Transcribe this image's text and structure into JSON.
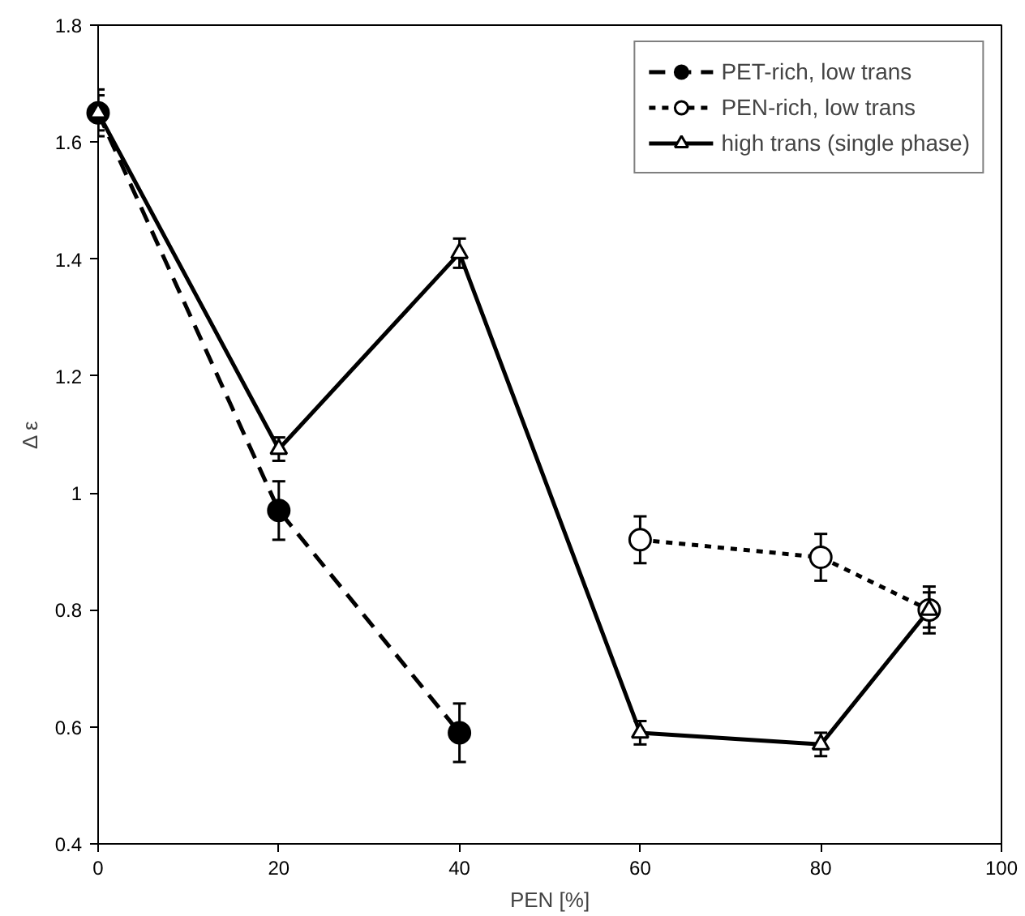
{
  "chart_data": {
    "type": "line",
    "xlabel": "PEN [%]",
    "ylabel": "Δ ε",
    "xlim": [
      0,
      100
    ],
    "ylim": [
      0.4,
      1.8
    ],
    "xticks": [
      0,
      20,
      40,
      60,
      80,
      100
    ],
    "yticks": [
      0.4,
      0.6,
      0.8,
      1,
      1.2,
      1.4,
      1.6,
      1.8
    ],
    "grid": false,
    "legend": "top right",
    "series": [
      {
        "name": "PET-rich, low trans",
        "color": "#000000",
        "x": [
          0,
          20,
          40
        ],
        "values": [
          1.65,
          0.97,
          0.59
        ],
        "errors": [
          0.03,
          0.05,
          0.05
        ],
        "marker": "circle",
        "line_style": "dashed"
      },
      {
        "name": "PEN-rich, low trans",
        "color": "#000000",
        "x": [
          60,
          80,
          92
        ],
        "values": [
          0.92,
          0.89,
          0.8
        ],
        "errors": [
          0.04,
          0.04,
          0.04
        ],
        "marker": "circle",
        "line_style": "dotted"
      },
      {
        "name": "high trans (single phase)",
        "color": "#000000",
        "x": [
          0,
          20,
          40,
          60,
          80,
          92
        ],
        "values": [
          1.65,
          1.075,
          1.41,
          0.59,
          0.57,
          0.8
        ],
        "errors": [
          0.04,
          0.02,
          0.025,
          0.02,
          0.02,
          0.03
        ],
        "marker": "triangle",
        "line_style": "solid"
      }
    ]
  }
}
